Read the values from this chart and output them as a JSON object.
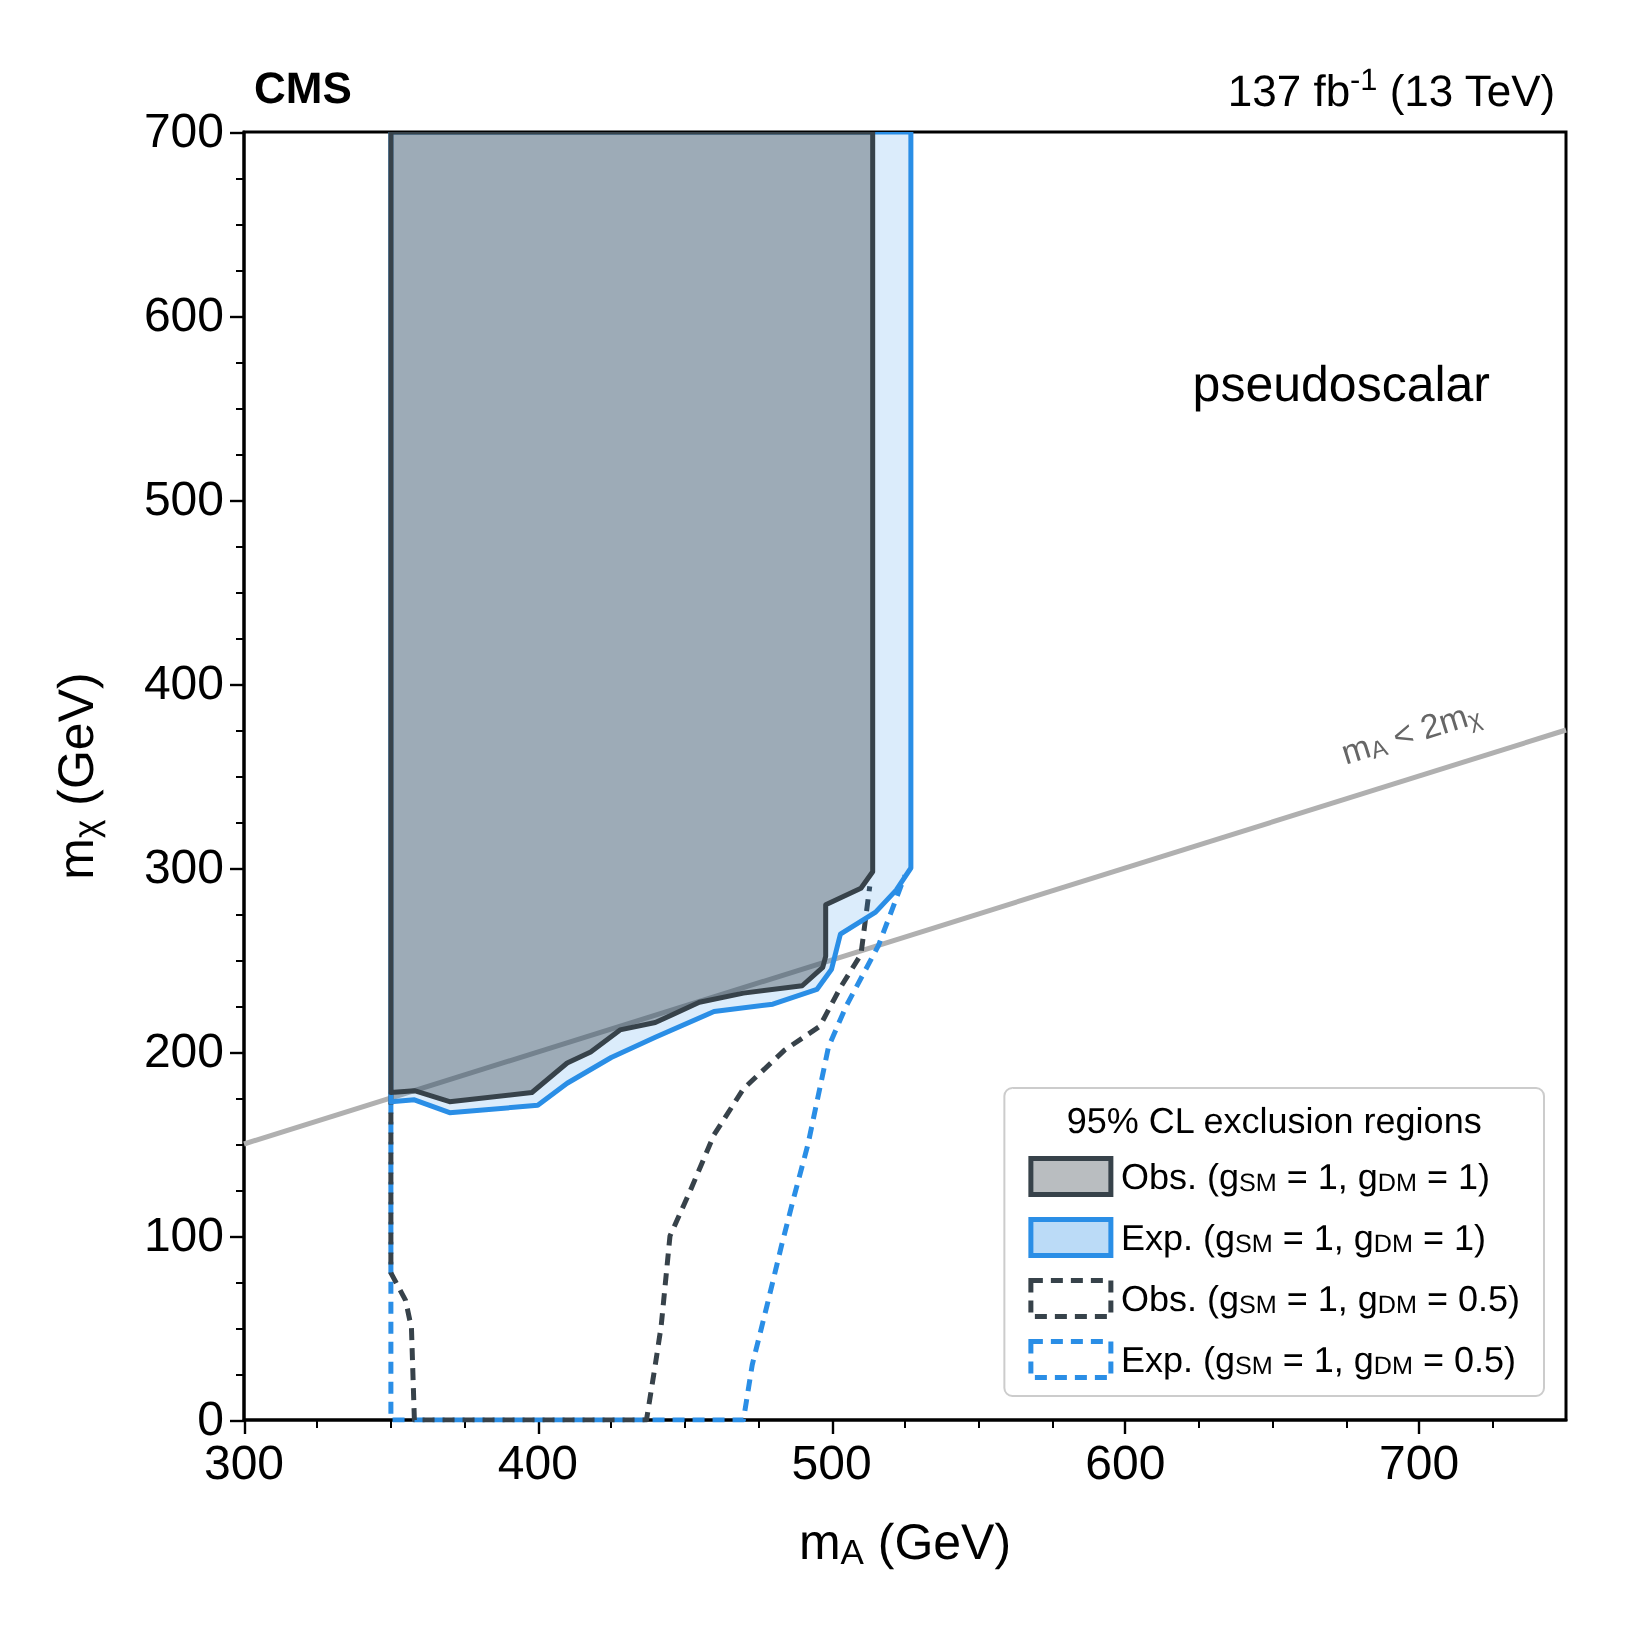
{
  "chart_data": {
    "type": "line",
    "title": "CMS",
    "subtitle": "137 fb$^{-1}$ (13 TeV)",
    "xlabel": "m$_{A}$ (GeV)",
    "ylabel": "m$_{χ}$ (GeV)",
    "legend_title": "95% CL exclusion regions",
    "annotations": [
      "pseudoscalar",
      "m$_{A}$ < 2m$_{χ}$"
    ],
    "series": [
      {
        "name": "Obs. (g$_{SM}$ = 1, g$_{DM}$ = 1)",
        "type": "area",
        "color": "#37424a",
        "x": [
          350,
          350,
          358,
          370,
          398,
          410,
          418,
          428,
          440,
          455,
          470,
          490,
          497,
          498,
          498,
          510,
          514,
          514
        ],
        "values": [
          700,
          178,
          179,
          173,
          178,
          194,
          200,
          212,
          216,
          227,
          232,
          236,
          246,
          252,
          280,
          289,
          298,
          700
        ]
      },
      {
        "name": "Exp. (g$_{SM}$ = 1, g$_{DM}$ = 1)",
        "type": "area",
        "color": "#2a8ee6",
        "x": [
          350,
          350,
          358,
          370,
          400,
          410,
          425,
          440,
          460,
          480,
          495,
          500,
          503,
          515,
          522,
          527,
          527
        ],
        "values": [
          700,
          173,
          174,
          167,
          171,
          183,
          197,
          208,
          222,
          226,
          234,
          245,
          264,
          276,
          288,
          300,
          700
        ]
      },
      {
        "name": "Obs. (g$_{SM}$ = 1, g$_{DM}$ = 0.5)",
        "line_style": "dashed",
        "color": "#37424a",
        "x": [
          350,
          350,
          355,
          357,
          358,
          437,
          440,
          442,
          445,
          452,
          460,
          470,
          484,
          496,
          503,
          510,
          513
        ],
        "values": [
          178,
          80,
          65,
          50,
          0,
          0,
          30,
          51,
          100,
          125,
          155,
          180,
          201,
          214,
          235,
          253,
          290
        ]
      },
      {
        "name": "Exp. (g$_{SM}$ = 1, g$_{DM}$ = 0.5)",
        "line_style": "dashed",
        "color": "#2a8ee6",
        "x": [
          350,
          350,
          470,
          473,
          478,
          483,
          487,
          492,
          499,
          505,
          516,
          525
        ],
        "values": [
          173,
          0,
          0,
          30,
          62,
          95,
          120,
          150,
          203,
          225,
          258,
          296
        ]
      },
      {
        "line_style": "solid",
        "color": "#b0b0b0",
        "x": [
          300,
          750
        ],
        "values": [
          150,
          375
        ]
      }
    ],
    "xlim": [
      300,
      750
    ],
    "xticks": [
      300,
      400,
      500,
      600,
      700
    ],
    "ylim": [
      0,
      700
    ],
    "yticks": [
      0,
      100,
      200,
      300,
      400,
      500,
      600,
      700
    ],
    "grid": false,
    "legend": "bottom right",
    "marker": "none"
  }
}
